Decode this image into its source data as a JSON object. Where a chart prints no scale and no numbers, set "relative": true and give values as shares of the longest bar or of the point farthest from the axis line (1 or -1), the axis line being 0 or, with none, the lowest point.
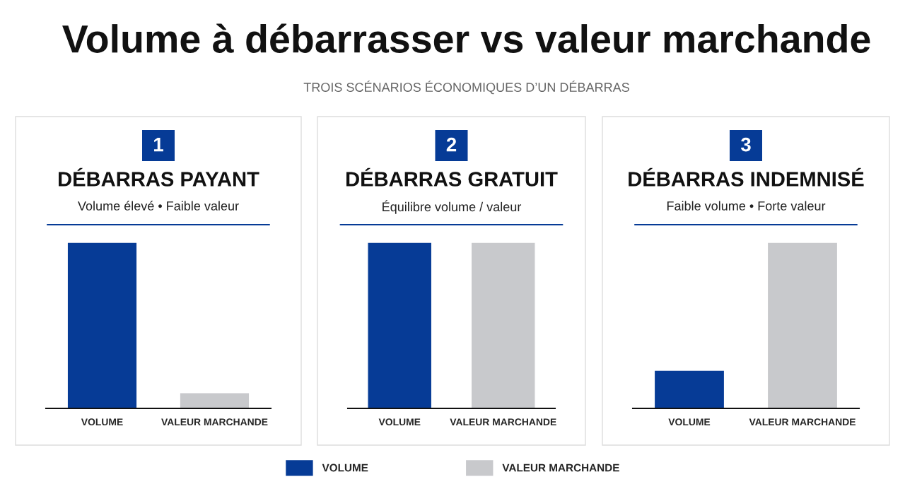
{
  "chart_data": [
    {
      "type": "other",
      "title": "Volume à débarrasser vs valeur marchande",
      "subtitle": "TROIS SCÉNARIOS ÉCONOMIQUES D’UN DÉBARRAS"
    },
    {
      "type": "bar",
      "title": "DÉBARRAS PAYANT",
      "subtitle": "Volume élevé • Faible valeur",
      "annotations": [
        "1"
      ],
      "relative": true,
      "categories": [
        "VOLUME",
        "VALEUR MARCHANDE"
      ],
      "values": [
        1,
        0.094
      ],
      "colors": [
        "#063b96",
        "#c8c9cc"
      ]
    },
    {
      "type": "bar",
      "title": "DÉBARRAS GRATUIT",
      "subtitle": "Équilibre volume / valeur",
      "annotations": [
        "2"
      ],
      "relative": true,
      "categories": [
        "VOLUME",
        "VALEUR MARCHANDE"
      ],
      "values": [
        1,
        1
      ],
      "colors": [
        "#063b96",
        "#c8c9cc"
      ]
    },
    {
      "type": "bar",
      "title": "DÉBARRAS INDEMNISÉ",
      "subtitle": "Faible volume • Forte valeur",
      "annotations": [
        "3"
      ],
      "relative": true,
      "categories": [
        "VOLUME",
        "VALEUR MARCHANDE"
      ],
      "legend": "bottom",
      "series": [
        {
          "name": "VOLUME",
          "color": "#063b96",
          "values": [
            0.23,
            null
          ]
        },
        {
          "name": "VALEUR MARCHANDE",
          "color": "#c8c9cc",
          "values": [
            null,
            1
          ]
        }
      ]
    }
  ]
}
